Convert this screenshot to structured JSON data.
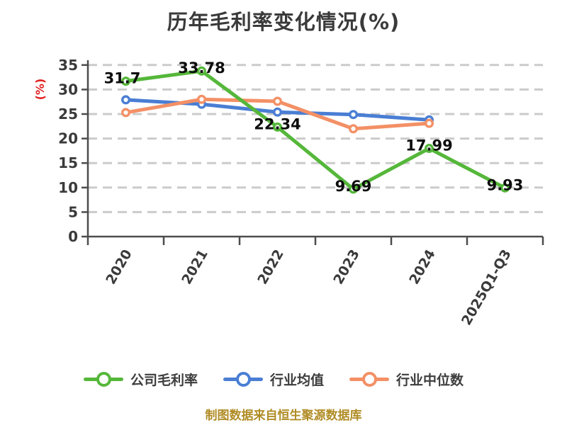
{
  "title": "历年毛利率变化情况(%)",
  "footer": "制图数据来自恒生聚源数据库",
  "chart_data": {
    "type": "line",
    "title": "历年毛利率变化情况(%)",
    "xlabel": "",
    "ylabel": "(%)",
    "ylabel_color": "#e02020",
    "categories": [
      "2020",
      "2021",
      "2022",
      "2023",
      "2024",
      "2025Q1-Q3"
    ],
    "series": [
      {
        "key": "company-gross-margin",
        "name": "公司毛利率",
        "color": "#55b73a",
        "values": [
          31.7,
          33.78,
          22.34,
          9.69,
          17.99,
          9.93
        ],
        "labels": [
          "31.7",
          "33.78",
          "22.34",
          "9.69",
          "17.99",
          "9.93"
        ]
      },
      {
        "key": "industry-mean",
        "name": "行业均值",
        "color": "#4a7ed4",
        "values": [
          27.9,
          27.0,
          25.4,
          24.9,
          23.8,
          null
        ]
      },
      {
        "key": "industry-median",
        "name": "行业中位数",
        "color": "#f39066",
        "values": [
          25.3,
          28.0,
          27.6,
          22.0,
          23.1,
          null
        ]
      }
    ],
    "ylim": [
      0,
      35
    ],
    "yticks": [
      0,
      5,
      10,
      15,
      20,
      25,
      30,
      35
    ],
    "grid": "horizontal dashed",
    "grid_color": "#cbcbcb",
    "axis_color": "#4d4d4d",
    "tick_label_color": "#3a3a3a",
    "value_label_color": "#0d0d0d",
    "legend_position": "bottom",
    "x_tick_rotation_deg": -60
  }
}
